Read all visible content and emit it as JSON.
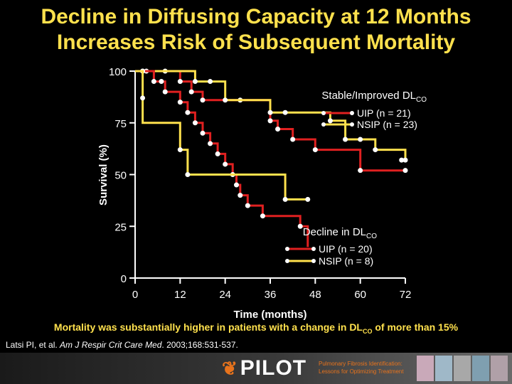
{
  "title": {
    "line1": "Decline in Diffusing Capacity at 12 Months",
    "line2": "Increases Risk of Subsequent Mortality"
  },
  "chart_data": {
    "type": "line",
    "step": true,
    "xlabel": "Time (months)",
    "ylabel": "Survival (%)",
    "xlim": [
      0,
      72
    ],
    "ylim": [
      0,
      100
    ],
    "xticks": [
      0,
      12,
      24,
      36,
      48,
      60,
      72
    ],
    "yticks": [
      0,
      25,
      50,
      75,
      100
    ],
    "colors": {
      "UIP": "#e02020",
      "NSIP": "#ffe14d"
    },
    "groups": [
      {
        "label_prefix": "Stable/Improved DL",
        "label_sub": "CO",
        "legend_position": "top-right",
        "series": [
          {
            "name": "UIP (n = 21)",
            "color": "#e02020",
            "points": [
              [
                0,
                100
              ],
              [
                12,
                100
              ],
              [
                12,
                95
              ],
              [
                15,
                95
              ],
              [
                15,
                90
              ],
              [
                18,
                90
              ],
              [
                18,
                86
              ],
              [
                36,
                86
              ],
              [
                36,
                76
              ],
              [
                38,
                76
              ],
              [
                38,
                72
              ],
              [
                42,
                72
              ],
              [
                42,
                67
              ],
              [
                48,
                67
              ],
              [
                48,
                62
              ],
              [
                60,
                62
              ],
              [
                60,
                52
              ],
              [
                72,
                52
              ]
            ],
            "markers": [
              [
                3,
                100
              ],
              [
                8,
                100
              ],
              [
                12,
                95
              ],
              [
                15,
                90
              ],
              [
                18,
                86
              ],
              [
                28,
                86
              ],
              [
                36,
                76
              ],
              [
                38,
                72
              ],
              [
                42,
                67
              ],
              [
                48,
                62
              ],
              [
                60,
                52
              ],
              [
                72,
                52
              ]
            ]
          },
          {
            "name": "NSIP (n = 23)",
            "color": "#ffe14d",
            "points": [
              [
                0,
                100
              ],
              [
                16,
                100
              ],
              [
                16,
                95
              ],
              [
                24,
                95
              ],
              [
                24,
                86
              ],
              [
                36,
                86
              ],
              [
                36,
                80
              ],
              [
                52,
                80
              ],
              [
                52,
                76
              ],
              [
                56,
                76
              ],
              [
                56,
                67
              ],
              [
                64,
                67
              ],
              [
                64,
                62
              ],
              [
                72,
                62
              ],
              [
                72,
                57
              ]
            ],
            "markers": [
              [
                2,
                100
              ],
              [
                16,
                95
              ],
              [
                20,
                95
              ],
              [
                24,
                86
              ],
              [
                36,
                80
              ],
              [
                40,
                80
              ],
              [
                52,
                76
              ],
              [
                56,
                67
              ],
              [
                60,
                67
              ],
              [
                64,
                62
              ],
              [
                71,
                57
              ],
              [
                72,
                57
              ]
            ]
          }
        ]
      },
      {
        "label_prefix": "Decline in DL",
        "label_sub": "CO",
        "legend_position": "bottom-right",
        "series": [
          {
            "name": "UIP (n = 20)",
            "color": "#e02020",
            "points": [
              [
                0,
                100
              ],
              [
                5,
                100
              ],
              [
                5,
                95
              ],
              [
                8,
                95
              ],
              [
                8,
                90
              ],
              [
                12,
                90
              ],
              [
                12,
                85
              ],
              [
                14,
                85
              ],
              [
                14,
                80
              ],
              [
                16,
                80
              ],
              [
                16,
                75
              ],
              [
                18,
                75
              ],
              [
                18,
                70
              ],
              [
                20,
                70
              ],
              [
                20,
                65
              ],
              [
                22,
                65
              ],
              [
                22,
                60
              ],
              [
                24,
                60
              ],
              [
                24,
                55
              ],
              [
                26,
                55
              ],
              [
                26,
                50
              ],
              [
                27,
                50
              ],
              [
                27,
                45
              ],
              [
                28,
                45
              ],
              [
                28,
                40
              ],
              [
                30,
                40
              ],
              [
                30,
                35
              ],
              [
                34,
                35
              ],
              [
                34,
                30
              ],
              [
                44,
                30
              ],
              [
                44,
                25
              ],
              [
                46,
                25
              ],
              [
                46,
                20
              ],
              [
                46,
                15
              ]
            ],
            "markers": [
              [
                2,
                100
              ],
              [
                5,
                95
              ],
              [
                7,
                95
              ],
              [
                8,
                90
              ],
              [
                12,
                85
              ],
              [
                14,
                80
              ],
              [
                16,
                75
              ],
              [
                18,
                70
              ],
              [
                20,
                65
              ],
              [
                22,
                60
              ],
              [
                24,
                55
              ],
              [
                26,
                50
              ],
              [
                27,
                45
              ],
              [
                28,
                40
              ],
              [
                30,
                35
              ],
              [
                34,
                30
              ],
              [
                44,
                25
              ]
            ]
          },
          {
            "name": "NSIP (n = 8)",
            "color": "#ffe14d",
            "points": [
              [
                0,
                100
              ],
              [
                2,
                100
              ],
              [
                2,
                75
              ],
              [
                12,
                75
              ],
              [
                12,
                62
              ],
              [
                14,
                62
              ],
              [
                14,
                50
              ],
              [
                40,
                50
              ],
              [
                40,
                38
              ],
              [
                46,
                38
              ]
            ],
            "markers": [
              [
                2,
                87
              ],
              [
                12,
                62
              ],
              [
                14,
                50
              ],
              [
                40,
                38
              ],
              [
                46,
                38
              ]
            ]
          }
        ]
      }
    ]
  },
  "caption": {
    "prefix": "Mortality was substantially higher in patients with a change in DL",
    "sub": "CO",
    "suffix": " of more than 15%"
  },
  "citation": {
    "prefix": "Latsi PI, et al. ",
    "journal": "Am J Respir Crit Care Med",
    "suffix": ". 2003;168:531-537."
  },
  "footer": {
    "logo_text": "PILOT",
    "tagline_line1": "Pulmonary Fibrosis Identification:",
    "tagline_line2": "Lessons for Optimizing Treatment",
    "tile_colors": [
      "#c9a9b9",
      "#9fb8c8",
      "#a8a8a8",
      "#7f9fb0",
      "#b0a0a8"
    ]
  }
}
